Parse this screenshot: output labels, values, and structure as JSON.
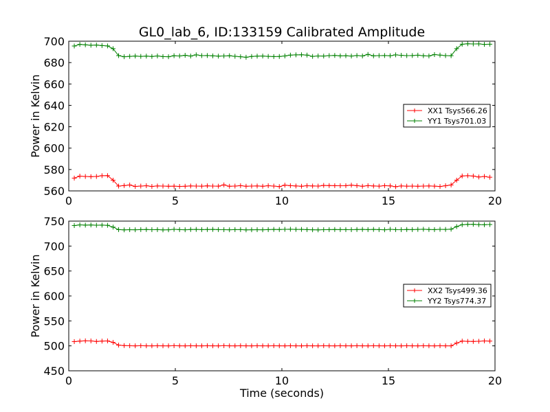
{
  "figure": {
    "title": "GL0_lab_6, ID:133159 Calibrated Amplitude",
    "xlabel": "Time (seconds)"
  },
  "chart_data": [
    {
      "type": "line",
      "title": "GL0_lab_6, ID:133159 Calibrated Amplitude",
      "xlabel": "",
      "ylabel": "Power in Kelvin",
      "xlim": [
        0,
        20
      ],
      "ylim": [
        560,
        700
      ],
      "xticks": [
        0,
        5,
        10,
        15,
        20
      ],
      "yticks": [
        560,
        580,
        600,
        620,
        640,
        660,
        680,
        700
      ],
      "grid": false,
      "legend_position": "center-right",
      "series": [
        {
          "name": "XX1 Tsys566.26",
          "color": "#ff0000",
          "marker": "+",
          "x": [
            0.26,
            0.52,
            0.78,
            1.04,
            1.3,
            1.56,
            1.82,
            2.08,
            2.34,
            2.6,
            2.86,
            3.12,
            3.38,
            3.64,
            3.9,
            4.16,
            4.42,
            4.68,
            4.94,
            5.2,
            5.46,
            5.72,
            5.98,
            6.24,
            6.5,
            6.76,
            7.02,
            7.28,
            7.54,
            7.8,
            8.06,
            8.32,
            8.58,
            8.84,
            9.1,
            9.36,
            9.62,
            9.88,
            10.14,
            10.4,
            10.66,
            10.92,
            11.18,
            11.44,
            11.7,
            11.96,
            12.22,
            12.48,
            12.74,
            13.0,
            13.26,
            13.52,
            13.78,
            14.04,
            14.3,
            14.56,
            14.82,
            15.08,
            15.34,
            15.6,
            15.86,
            16.12,
            16.38,
            16.64,
            16.9,
            17.16,
            17.42,
            17.68,
            17.94,
            18.2,
            18.46,
            18.72,
            18.98,
            19.24,
            19.5,
            19.76
          ],
          "y": [
            572.0,
            573.8,
            573.5,
            573.3,
            573.5,
            574.2,
            574.3,
            570.0,
            564.5,
            565.0,
            565.5,
            564.2,
            564.5,
            564.8,
            564.2,
            564.6,
            564.5,
            564.3,
            564.4,
            564.2,
            564.3,
            564.6,
            564.5,
            564.4,
            564.7,
            564.5,
            564.4,
            565.6,
            564.3,
            564.5,
            564.9,
            564.3,
            564.5,
            564.6,
            564.3,
            564.8,
            564.5,
            564.0,
            565.4,
            564.9,
            564.6,
            564.3,
            564.8,
            564.6,
            564.5,
            565.1,
            565.0,
            564.9,
            564.8,
            564.9,
            565.4,
            564.9,
            564.3,
            564.9,
            564.6,
            564.4,
            564.9,
            564.7,
            563.9,
            564.6,
            564.4,
            564.5,
            564.3,
            564.5,
            564.6,
            564.4,
            564.1,
            564.8,
            565.5,
            570.0,
            574.0,
            574.2,
            573.9,
            573.0,
            573.5,
            572.8
          ]
        },
        {
          "name": "YY1 Tsys701.03",
          "color": "#008000",
          "marker": "+",
          "x": [
            0.26,
            0.52,
            0.78,
            1.04,
            1.3,
            1.56,
            1.82,
            2.08,
            2.34,
            2.6,
            2.86,
            3.12,
            3.38,
            3.64,
            3.9,
            4.16,
            4.42,
            4.68,
            4.94,
            5.2,
            5.46,
            5.72,
            5.98,
            6.24,
            6.5,
            6.76,
            7.02,
            7.28,
            7.54,
            7.8,
            8.06,
            8.32,
            8.58,
            8.84,
            9.1,
            9.36,
            9.62,
            9.88,
            10.14,
            10.4,
            10.66,
            10.92,
            11.18,
            11.44,
            11.7,
            11.96,
            12.22,
            12.48,
            12.74,
            13.0,
            13.26,
            13.52,
            13.78,
            14.04,
            14.3,
            14.56,
            14.82,
            15.08,
            15.34,
            15.6,
            15.86,
            16.12,
            16.38,
            16.64,
            16.9,
            17.16,
            17.42,
            17.68,
            17.94,
            18.2,
            18.46,
            18.72,
            18.98,
            19.24,
            19.5,
            19.76
          ],
          "y": [
            695.5,
            697.0,
            696.6,
            696.2,
            696.4,
            695.9,
            695.6,
            693.0,
            686.5,
            685.5,
            685.8,
            686.1,
            685.8,
            686.0,
            685.7,
            686.2,
            685.6,
            685.5,
            686.4,
            686.2,
            686.8,
            686.1,
            687.2,
            686.5,
            686.6,
            686.3,
            686.0,
            686.2,
            686.4,
            685.9,
            685.5,
            685.0,
            685.7,
            686.0,
            686.1,
            685.8,
            685.6,
            685.7,
            686.2,
            687.0,
            687.2,
            687.3,
            687.0,
            685.8,
            686.2,
            686.1,
            686.5,
            686.7,
            686.3,
            686.4,
            686.1,
            686.6,
            686.2,
            687.6,
            686.3,
            686.5,
            686.6,
            686.4,
            687.2,
            686.8,
            686.5,
            686.6,
            686.9,
            686.4,
            686.2,
            687.5,
            687.0,
            686.5,
            686.4,
            693.0,
            697.2,
            697.6,
            697.4,
            697.5,
            697.0,
            697.2
          ]
        }
      ]
    },
    {
      "type": "line",
      "title": "",
      "xlabel": "Time (seconds)",
      "ylabel": "Power in Kelvin",
      "xlim": [
        0,
        20
      ],
      "ylim": [
        450,
        750
      ],
      "xticks": [
        0,
        5,
        10,
        15,
        20
      ],
      "yticks": [
        450,
        500,
        550,
        600,
        650,
        700,
        750
      ],
      "grid": false,
      "legend_position": "center-right",
      "series": [
        {
          "name": "XX2 Tsys499.36",
          "color": "#ff0000",
          "marker": "+",
          "x": [
            0.26,
            0.52,
            0.78,
            1.04,
            1.3,
            1.56,
            1.82,
            2.08,
            2.34,
            2.6,
            2.86,
            3.12,
            3.38,
            3.64,
            3.9,
            4.16,
            4.42,
            4.68,
            4.94,
            5.2,
            5.46,
            5.72,
            5.98,
            6.24,
            6.5,
            6.76,
            7.02,
            7.28,
            7.54,
            7.8,
            8.06,
            8.32,
            8.58,
            8.84,
            9.1,
            9.36,
            9.62,
            9.88,
            10.14,
            10.4,
            10.66,
            10.92,
            11.18,
            11.44,
            11.7,
            11.96,
            12.22,
            12.48,
            12.74,
            13.0,
            13.26,
            13.52,
            13.78,
            14.04,
            14.3,
            14.56,
            14.82,
            15.08,
            15.34,
            15.6,
            15.86,
            16.12,
            16.38,
            16.64,
            16.9,
            17.16,
            17.42,
            17.68,
            17.94,
            18.2,
            18.46,
            18.72,
            18.98,
            19.24,
            19.5,
            19.76
          ],
          "y": [
            508.5,
            509.5,
            510.0,
            509.8,
            508.8,
            509.6,
            509.9,
            507.0,
            501.5,
            500.5,
            500.2,
            500.0,
            500.3,
            500.1,
            500.0,
            500.2,
            500.1,
            500.0,
            500.3,
            500.1,
            500.0,
            500.2,
            500.1,
            500.0,
            500.2,
            500.1,
            500.0,
            500.3,
            500.1,
            500.0,
            500.2,
            500.1,
            500.0,
            500.2,
            500.1,
            500.0,
            500.2,
            500.1,
            500.0,
            500.2,
            500.1,
            500.0,
            500.2,
            500.1,
            500.0,
            500.2,
            500.1,
            500.0,
            500.2,
            500.1,
            500.0,
            500.2,
            500.1,
            500.0,
            500.2,
            500.1,
            500.0,
            500.2,
            500.1,
            500.0,
            500.2,
            500.1,
            500.0,
            500.2,
            500.1,
            500.0,
            500.2,
            500.1,
            500.0,
            505.5,
            509.5,
            509.0,
            508.8,
            509.2,
            509.8,
            509.5
          ]
        },
        {
          "name": "YY2 Tsys774.37",
          "color": "#008000",
          "marker": "+",
          "x": [
            0.26,
            0.52,
            0.78,
            1.04,
            1.3,
            1.56,
            1.82,
            2.08,
            2.34,
            2.6,
            2.86,
            3.12,
            3.38,
            3.64,
            3.9,
            4.16,
            4.42,
            4.68,
            4.94,
            5.2,
            5.46,
            5.72,
            5.98,
            6.24,
            6.5,
            6.76,
            7.02,
            7.28,
            7.54,
            7.8,
            8.06,
            8.32,
            8.58,
            8.84,
            9.1,
            9.36,
            9.62,
            9.88,
            10.14,
            10.4,
            10.66,
            10.92,
            11.18,
            11.44,
            11.7,
            11.96,
            12.22,
            12.48,
            12.74,
            13.0,
            13.26,
            13.52,
            13.78,
            14.04,
            14.3,
            14.56,
            14.82,
            15.08,
            15.34,
            15.6,
            15.86,
            16.12,
            16.38,
            16.64,
            16.9,
            17.16,
            17.42,
            17.68,
            17.94,
            18.2,
            18.46,
            18.72,
            18.98,
            19.24,
            19.5,
            19.76
          ],
          "y": [
            741.0,
            742.5,
            742.0,
            742.3,
            741.8,
            742.0,
            741.5,
            738.0,
            733.0,
            732.5,
            732.8,
            732.6,
            733.0,
            733.2,
            732.8,
            732.9,
            732.4,
            732.6,
            733.5,
            733.0,
            732.7,
            733.1,
            733.3,
            732.9,
            733.2,
            733.4,
            733.0,
            732.8,
            732.6,
            732.9,
            733.0,
            732.5,
            732.6,
            732.8,
            732.7,
            732.9,
            733.4,
            733.2,
            733.5,
            733.6,
            733.3,
            733.4,
            733.0,
            732.6,
            732.5,
            732.8,
            733.0,
            733.2,
            732.9,
            733.0,
            732.8,
            733.1,
            733.4,
            732.9,
            733.3,
            733.0,
            732.7,
            733.5,
            733.0,
            732.8,
            733.2,
            732.9,
            733.4,
            733.6,
            733.2,
            733.0,
            733.5,
            733.3,
            733.8,
            739.0,
            742.8,
            743.5,
            743.6,
            743.0,
            742.8,
            743.2
          ]
        }
      ]
    }
  ]
}
